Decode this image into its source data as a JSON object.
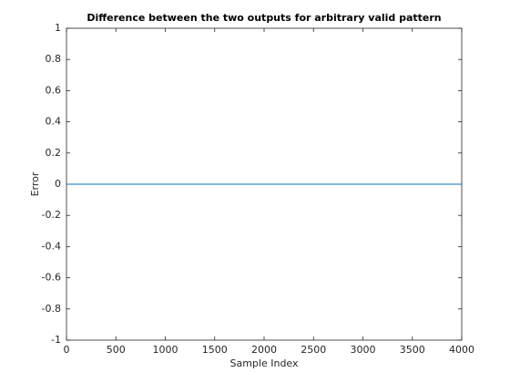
{
  "chart_data": {
    "type": "line",
    "title": "Difference between the two outputs for arbitrary valid pattern",
    "x_label": "Sample Index",
    "y_label": "Error",
    "x": [
      0,
      4000
    ],
    "series": [
      {
        "name": "Error",
        "color": "#0072bd",
        "values": [
          0,
          0
        ]
      }
    ],
    "xlim": [
      0,
      4000
    ],
    "xticks": [
      0,
      500,
      1000,
      1500,
      2000,
      2500,
      3000,
      3500,
      4000
    ],
    "ylim": [
      -1,
      1
    ],
    "yticks": [
      -1,
      -0.8,
      -0.6,
      -0.4,
      -0.2,
      0,
      0.2,
      0.4,
      0.6,
      0.8,
      1
    ],
    "grid": false
  }
}
